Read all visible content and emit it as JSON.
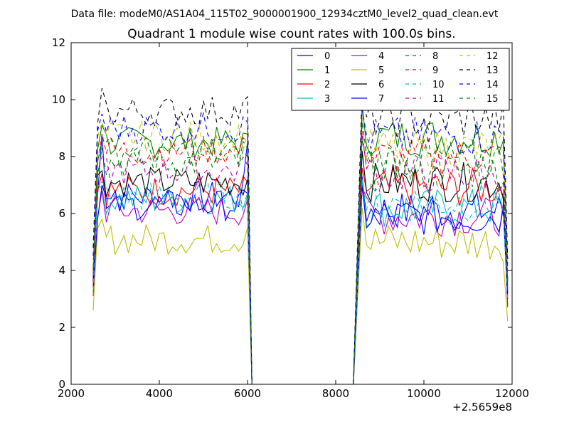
{
  "suptitle": "Data file: modeM0/AS1A04_115T02_9000001900_12934cztM0_level2_quad_clean.evt",
  "chart_data": {
    "type": "line",
    "title": "Quadrant 1 module wise count rates with 100.0s bins.",
    "xlabel": "",
    "ylabel": "",
    "xlim": [
      2000,
      12000
    ],
    "ylim": [
      0,
      12
    ],
    "x_offset_label": "+2.5659e8",
    "x_ticks": [
      2000,
      4000,
      6000,
      8000,
      10000,
      12000
    ],
    "x_tick_labels": [
      "2000",
      "4000",
      "6000",
      "8000",
      "10000",
      "12000"
    ],
    "y_ticks": [
      0,
      2,
      4,
      6,
      8,
      10,
      12
    ],
    "y_tick_labels": [
      "0",
      "2",
      "4",
      "6",
      "8",
      "10",
      "12"
    ],
    "grid": false,
    "legend_position": "top-right",
    "legend_columns": 4,
    "segments": [
      {
        "start": 2500,
        "end": 6000
      },
      {
        "start": 8600,
        "end": 11900
      }
    ],
    "gap": {
      "start": 6100,
      "end": 8400
    },
    "series": [
      {
        "name": "0",
        "color": "#0000ff",
        "dash": "solid",
        "level1": 6.6,
        "level2": 6.1,
        "low": 3.7,
        "peak1": 8.8,
        "peak2": 7.3
      },
      {
        "name": "1",
        "color": "#008000",
        "dash": "solid",
        "level1": 8.5,
        "level2": 8.7,
        "low": 4.0,
        "peak1": 9.1,
        "peak2": 9.8
      },
      {
        "name": "2",
        "color": "#ff0000",
        "dash": "solid",
        "level1": 6.8,
        "level2": 6.9,
        "low": 3.5,
        "peak1": 7.4,
        "peak2": 7.6
      },
      {
        "name": "3",
        "color": "#00bfbf",
        "dash": "solid",
        "level1": 6.5,
        "level2": 6.2,
        "low": 3.2,
        "peak1": 6.9,
        "peak2": 7.2
      },
      {
        "name": "4",
        "color": "#bf00bf",
        "dash": "solid",
        "level1": 6.1,
        "level2": 5.9,
        "low": 3.1,
        "peak1": 6.8,
        "peak2": 6.9
      },
      {
        "name": "5",
        "color": "#bfbf00",
        "dash": "solid",
        "level1": 5.1,
        "level2": 5.0,
        "low": 2.6,
        "peak1": 5.8,
        "peak2": 6.2
      },
      {
        "name": "6",
        "color": "#000000",
        "dash": "solid",
        "level1": 7.1,
        "level2": 7.1,
        "low": 3.6,
        "peak1": 7.5,
        "peak2": 8.2
      },
      {
        "name": "7",
        "color": "#0000ff",
        "dash": "solid",
        "level1": 6.3,
        "level2": 5.9,
        "low": 3.4,
        "peak1": 7.0,
        "peak2": 7.0
      },
      {
        "name": "8",
        "color": "#008000",
        "dash": "dashed",
        "level1": 7.8,
        "level2": 7.5,
        "low": 3.9,
        "peak1": 8.3,
        "peak2": 8.6
      },
      {
        "name": "9",
        "color": "#ff0000",
        "dash": "dashed",
        "level1": 8.2,
        "level2": 8.0,
        "low": 4.0,
        "peak1": 8.8,
        "peak2": 8.9
      },
      {
        "name": "10",
        "color": "#00bfbf",
        "dash": "dashed",
        "level1": 6.6,
        "level2": 6.4,
        "low": 3.3,
        "peak1": 7.1,
        "peak2": 7.2
      },
      {
        "name": "11",
        "color": "#bf00bf",
        "dash": "dashed",
        "level1": 7.5,
        "level2": 7.4,
        "low": 3.8,
        "peak1": 8.0,
        "peak2": 8.8
      },
      {
        "name": "12",
        "color": "#bfbf00",
        "dash": "dashed",
        "level1": 8.7,
        "level2": 8.3,
        "low": 4.3,
        "peak1": 9.2,
        "peak2": 9.4
      },
      {
        "name": "13",
        "color": "#000000",
        "dash": "dashed",
        "level1": 9.6,
        "level2": 9.3,
        "low": 4.8,
        "peak1": 10.4,
        "peak2": 10.5
      },
      {
        "name": "14",
        "color": "#0000ff",
        "dash": "dashed",
        "level1": 9.0,
        "level2": 8.7,
        "low": 4.5,
        "peak1": 9.5,
        "peak2": 9.7
      },
      {
        "name": "15",
        "color": "#008000",
        "dash": "dashed",
        "level1": 8.2,
        "level2": 7.9,
        "low": 4.1,
        "peak1": 8.6,
        "peak2": 9.2
      }
    ]
  }
}
